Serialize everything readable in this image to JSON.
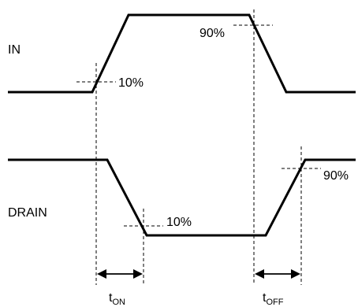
{
  "signals": {
    "in_label": "IN",
    "drain_label": "DRAIN"
  },
  "thresholds": {
    "in_rise": "10%",
    "in_fall": "90%",
    "drain_fall": "10%",
    "drain_rise": "90%"
  },
  "timing": {
    "t_on_main": "t",
    "t_on_sub": "ON",
    "t_off_main": "t",
    "t_off_sub": "OFF"
  }
}
